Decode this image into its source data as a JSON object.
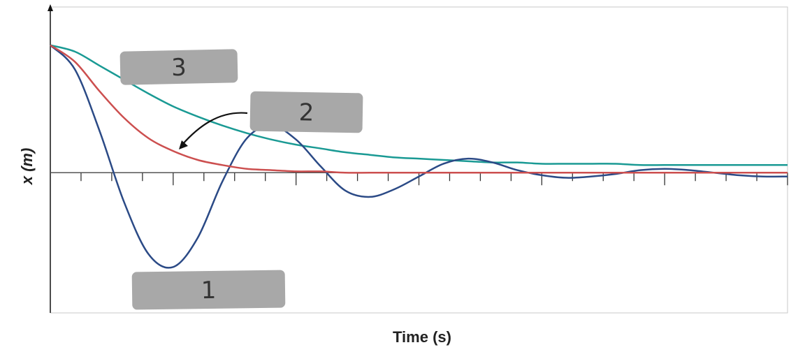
{
  "chart_data": {
    "type": "line",
    "xlabel": "Time (s)",
    "ylabel": "x (m)",
    "x_range": [
      0,
      24
    ],
    "y_range": [
      -1.1,
      1.3
    ],
    "x_ticks": [
      1,
      2,
      3,
      4,
      5,
      6,
      7,
      8,
      9,
      10,
      11,
      12,
      13,
      14,
      15,
      16,
      17,
      18,
      19,
      20,
      21,
      22,
      23,
      24
    ],
    "grid": false,
    "legend": "none",
    "series": [
      {
        "name": "1",
        "color": "#2b4a86",
        "x": [
          0,
          0.8,
          1.6,
          2.4,
          3.2,
          4.0,
          4.8,
          5.6,
          6.4,
          7.2,
          8.0,
          8.8,
          9.6,
          10.4,
          11.2,
          12.0,
          12.8,
          13.6,
          14.4,
          15.2,
          16.0,
          16.8,
          17.6,
          18.4,
          19.2,
          20.0,
          20.8,
          21.6,
          22.4,
          23.2,
          24.0
        ],
        "values": [
          1.0,
          0.81,
          0.33,
          -0.23,
          -0.64,
          -0.74,
          -0.51,
          -0.07,
          0.27,
          0.37,
          0.26,
          0.05,
          -0.14,
          -0.19,
          -0.13,
          -0.03,
          0.07,
          0.11,
          0.08,
          0.02,
          -0.02,
          -0.04,
          -0.03,
          -0.01,
          0.02,
          0.03,
          0.02,
          0.0,
          -0.02,
          -0.03,
          -0.03
        ]
      },
      {
        "name": "2",
        "color": "#cc4f4f",
        "x": [
          0,
          0.8,
          1.6,
          2.4,
          3.2,
          4.0,
          4.8,
          5.6,
          6.4,
          7.2,
          8.0,
          8.8,
          9.6,
          10.4,
          11.2,
          12.0,
          12.8,
          13.6,
          14.4,
          15.2,
          16.0,
          16.8,
          17.6,
          18.4,
          19.2,
          20.0,
          20.8,
          21.6,
          22.4,
          23.2,
          24.0
        ],
        "values": [
          1.0,
          0.87,
          0.64,
          0.43,
          0.27,
          0.17,
          0.1,
          0.06,
          0.03,
          0.02,
          0.01,
          0.01,
          0.0,
          0.0,
          0.0,
          0.0,
          0.0,
          0.0,
          0.0,
          0.0,
          0.0,
          0.0,
          0.0,
          0.0,
          0.0,
          0.0,
          0.0,
          0.0,
          0.0,
          0.0,
          0.0
        ]
      },
      {
        "name": "3",
        "color": "#1a9a94",
        "x": [
          0,
          0.8,
          1.6,
          2.4,
          3.2,
          4.0,
          4.8,
          5.6,
          6.4,
          7.2,
          8.0,
          8.8,
          9.6,
          10.4,
          11.2,
          12.0,
          12.8,
          13.6,
          14.4,
          15.2,
          16.0,
          16.8,
          17.6,
          18.4,
          19.2,
          20.0,
          20.8,
          21.6,
          22.4,
          23.2,
          24.0
        ],
        "values": [
          1.0,
          0.95,
          0.84,
          0.73,
          0.62,
          0.52,
          0.44,
          0.37,
          0.31,
          0.26,
          0.22,
          0.19,
          0.16,
          0.14,
          0.12,
          0.11,
          0.1,
          0.09,
          0.08,
          0.08,
          0.07,
          0.07,
          0.07,
          0.07,
          0.06,
          0.06,
          0.06,
          0.06,
          0.06,
          0.06,
          0.06
        ]
      }
    ],
    "annotations": [
      {
        "text": "3",
        "series": "3"
      },
      {
        "text": "2",
        "series": "2",
        "arrow": true
      },
      {
        "text": "1",
        "series": "1"
      }
    ]
  }
}
